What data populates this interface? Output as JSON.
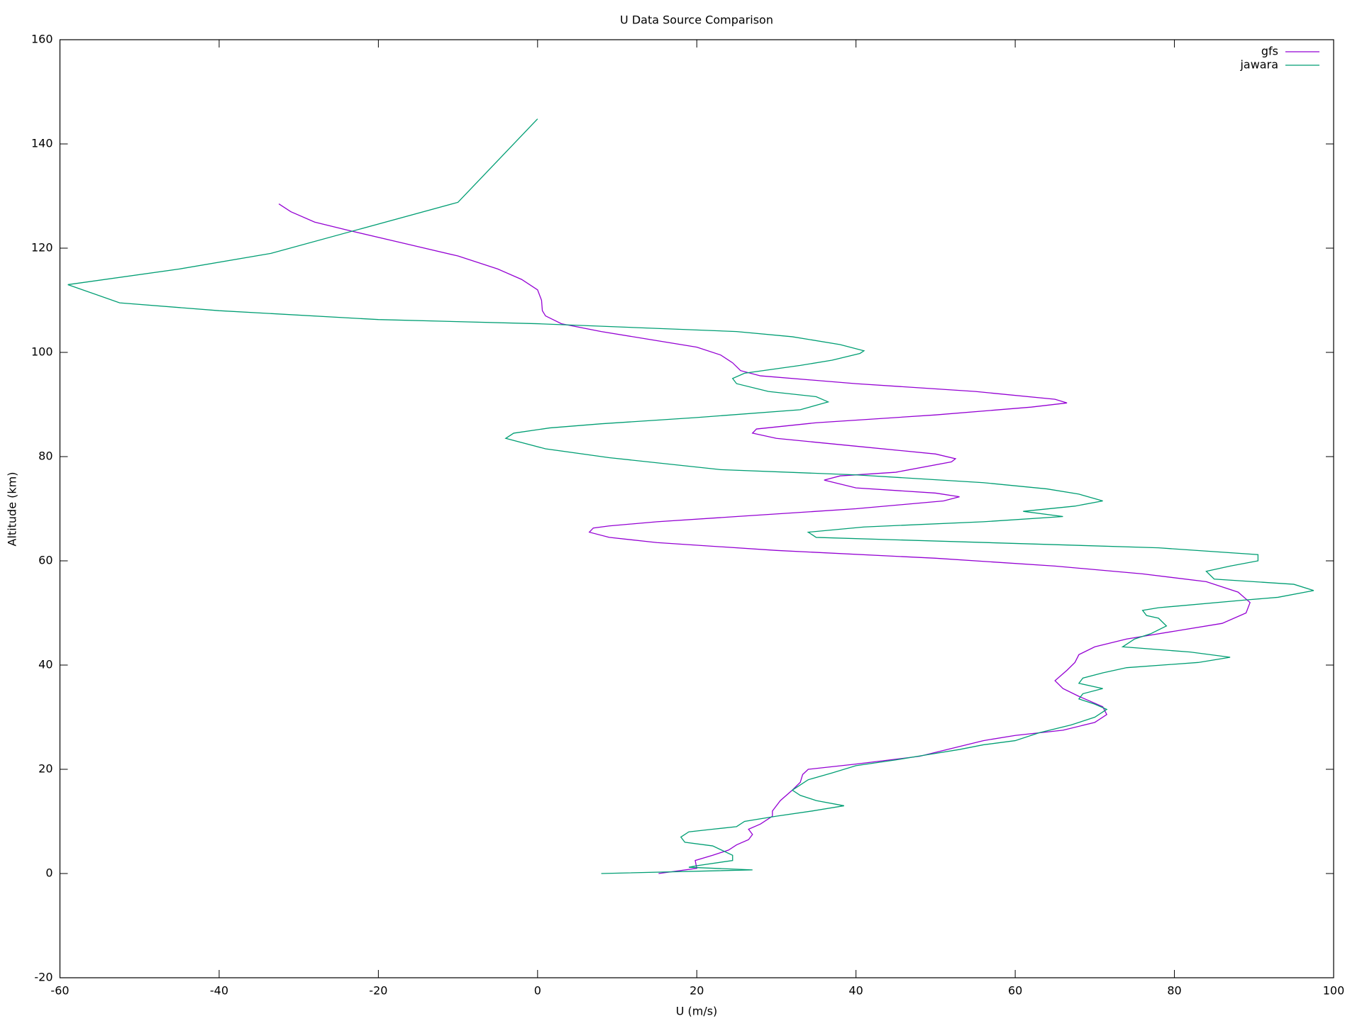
{
  "chart_data": {
    "type": "line",
    "title": "U Data Source Comparison",
    "x_label": "U (m/s)",
    "y_label": "Altitude (km)",
    "xlim": [
      -60,
      100
    ],
    "xticks": [
      -60,
      -40,
      -20,
      0,
      20,
      40,
      60,
      80,
      100
    ],
    "ylim": [
      -20,
      160
    ],
    "yticks": [
      -20,
      0,
      20,
      40,
      60,
      80,
      100,
      120,
      140,
      160
    ],
    "grid": false,
    "legend": "top-right",
    "series": [
      {
        "name": "gfs",
        "color": "#9400d3",
        "x": [
          15.2,
          20,
          19.8,
          22,
          24,
          25,
          26.5,
          27,
          26.5,
          28,
          29.5,
          29.5,
          30.5,
          32,
          33,
          33.3,
          34,
          40,
          48,
          52,
          56,
          60,
          66,
          70,
          71.5,
          71,
          68,
          66,
          65,
          66.5,
          67.5,
          68,
          70,
          74,
          80,
          86,
          89,
          89.5,
          88,
          84,
          76,
          65,
          50,
          30,
          15,
          9,
          6.5,
          7,
          9,
          15,
          25,
          40,
          51,
          53,
          50,
          40,
          36,
          38,
          45,
          52,
          52.5,
          50,
          40,
          30,
          27,
          27.5,
          35,
          50,
          62,
          66.5,
          65,
          55,
          40,
          28,
          25.5,
          24.5,
          23,
          20,
          14,
          8,
          3,
          1,
          0.6,
          0.5,
          0,
          -2,
          -5,
          -10,
          -17,
          -24,
          -28,
          -31,
          -32.5
        ],
        "values": [
          0,
          1,
          2.5,
          3.5,
          4.5,
          5.5,
          6.5,
          7.5,
          8.5,
          9.5,
          11,
          12,
          14,
          16,
          17.5,
          19,
          20,
          21,
          22.5,
          24,
          25.5,
          26.5,
          27.5,
          29,
          30.5,
          32,
          34,
          35.5,
          37,
          39,
          40.5,
          42,
          43.5,
          45,
          46.5,
          48,
          50,
          52,
          54,
          56,
          57.5,
          59,
          60.5,
          62,
          63.5,
          64.5,
          65.5,
          66.3,
          66.7,
          67.5,
          68.5,
          70,
          71.5,
          72.3,
          73,
          74,
          75.5,
          76.3,
          77,
          79,
          79.6,
          80.5,
          82,
          83.5,
          84.5,
          85.3,
          86.5,
          88,
          89.5,
          90.3,
          91,
          92.5,
          94,
          95.5,
          96.5,
          98,
          99.5,
          101,
          102.5,
          104,
          105.5,
          107,
          108,
          110,
          112,
          114,
          116,
          118.5,
          121,
          123.5,
          125,
          127,
          128.5
        ]
      },
      {
        "name": "jawara",
        "color": "#009e73",
        "x": [
          8,
          27,
          19,
          20,
          24.5,
          24.5,
          22,
          18.5,
          18,
          19,
          22,
          25,
          26,
          30,
          34.5,
          38.5,
          35,
          33,
          32,
          34,
          37,
          40,
          45,
          49,
          53,
          56,
          60,
          63,
          67,
          70,
          71.5,
          70,
          68,
          68.5,
          71,
          68,
          68.5,
          71,
          74,
          83,
          87,
          82,
          73.5,
          75,
          77,
          79,
          78,
          76.5,
          76,
          78,
          89,
          93,
          97.5,
          95,
          85,
          84,
          87,
          90.5,
          90.5,
          78,
          35,
          34,
          41,
          56,
          66,
          61,
          67.5,
          71,
          68,
          64,
          56,
          40,
          23,
          9,
          1,
          -4,
          -3,
          1.5,
          8,
          20,
          33,
          36.5,
          35,
          29,
          25,
          24.5,
          26,
          33,
          37,
          40.5,
          41,
          38,
          32,
          25,
          0,
          -20,
          -40,
          -52.5,
          -59,
          -45,
          -33.5,
          -10,
          0
        ],
        "values": [
          0,
          0.7,
          1.2,
          1.5,
          2.5,
          3.5,
          5.3,
          6,
          7,
          8,
          8.5,
          9,
          10,
          11,
          12,
          13,
          14,
          15,
          16,
          18,
          19.3,
          20.7,
          21.8,
          22.8,
          23.8,
          24.7,
          25.5,
          27,
          28.5,
          30,
          31.5,
          32.5,
          33.5,
          34.5,
          35.5,
          36.5,
          37.5,
          38.5,
          39.5,
          40.5,
          41.5,
          42.5,
          43.5,
          45,
          46,
          47.5,
          49,
          49.5,
          50.5,
          51,
          52.5,
          53,
          54.3,
          55.5,
          56.5,
          58,
          59,
          60,
          61.2,
          62.5,
          64.5,
          65.5,
          66.5,
          67.5,
          68.5,
          69.5,
          70.5,
          71.5,
          72.8,
          73.8,
          75,
          76.5,
          77.5,
          79.8,
          81.5,
          83.5,
          84.5,
          85.5,
          86.3,
          87.5,
          89,
          90.5,
          91.5,
          92.5,
          94,
          95,
          96,
          97.5,
          98.5,
          99.8,
          100.3,
          101.5,
          103,
          104,
          105.5,
          106.3,
          108,
          109.5,
          113,
          116,
          119,
          128.8,
          144.8
        ]
      }
    ]
  }
}
